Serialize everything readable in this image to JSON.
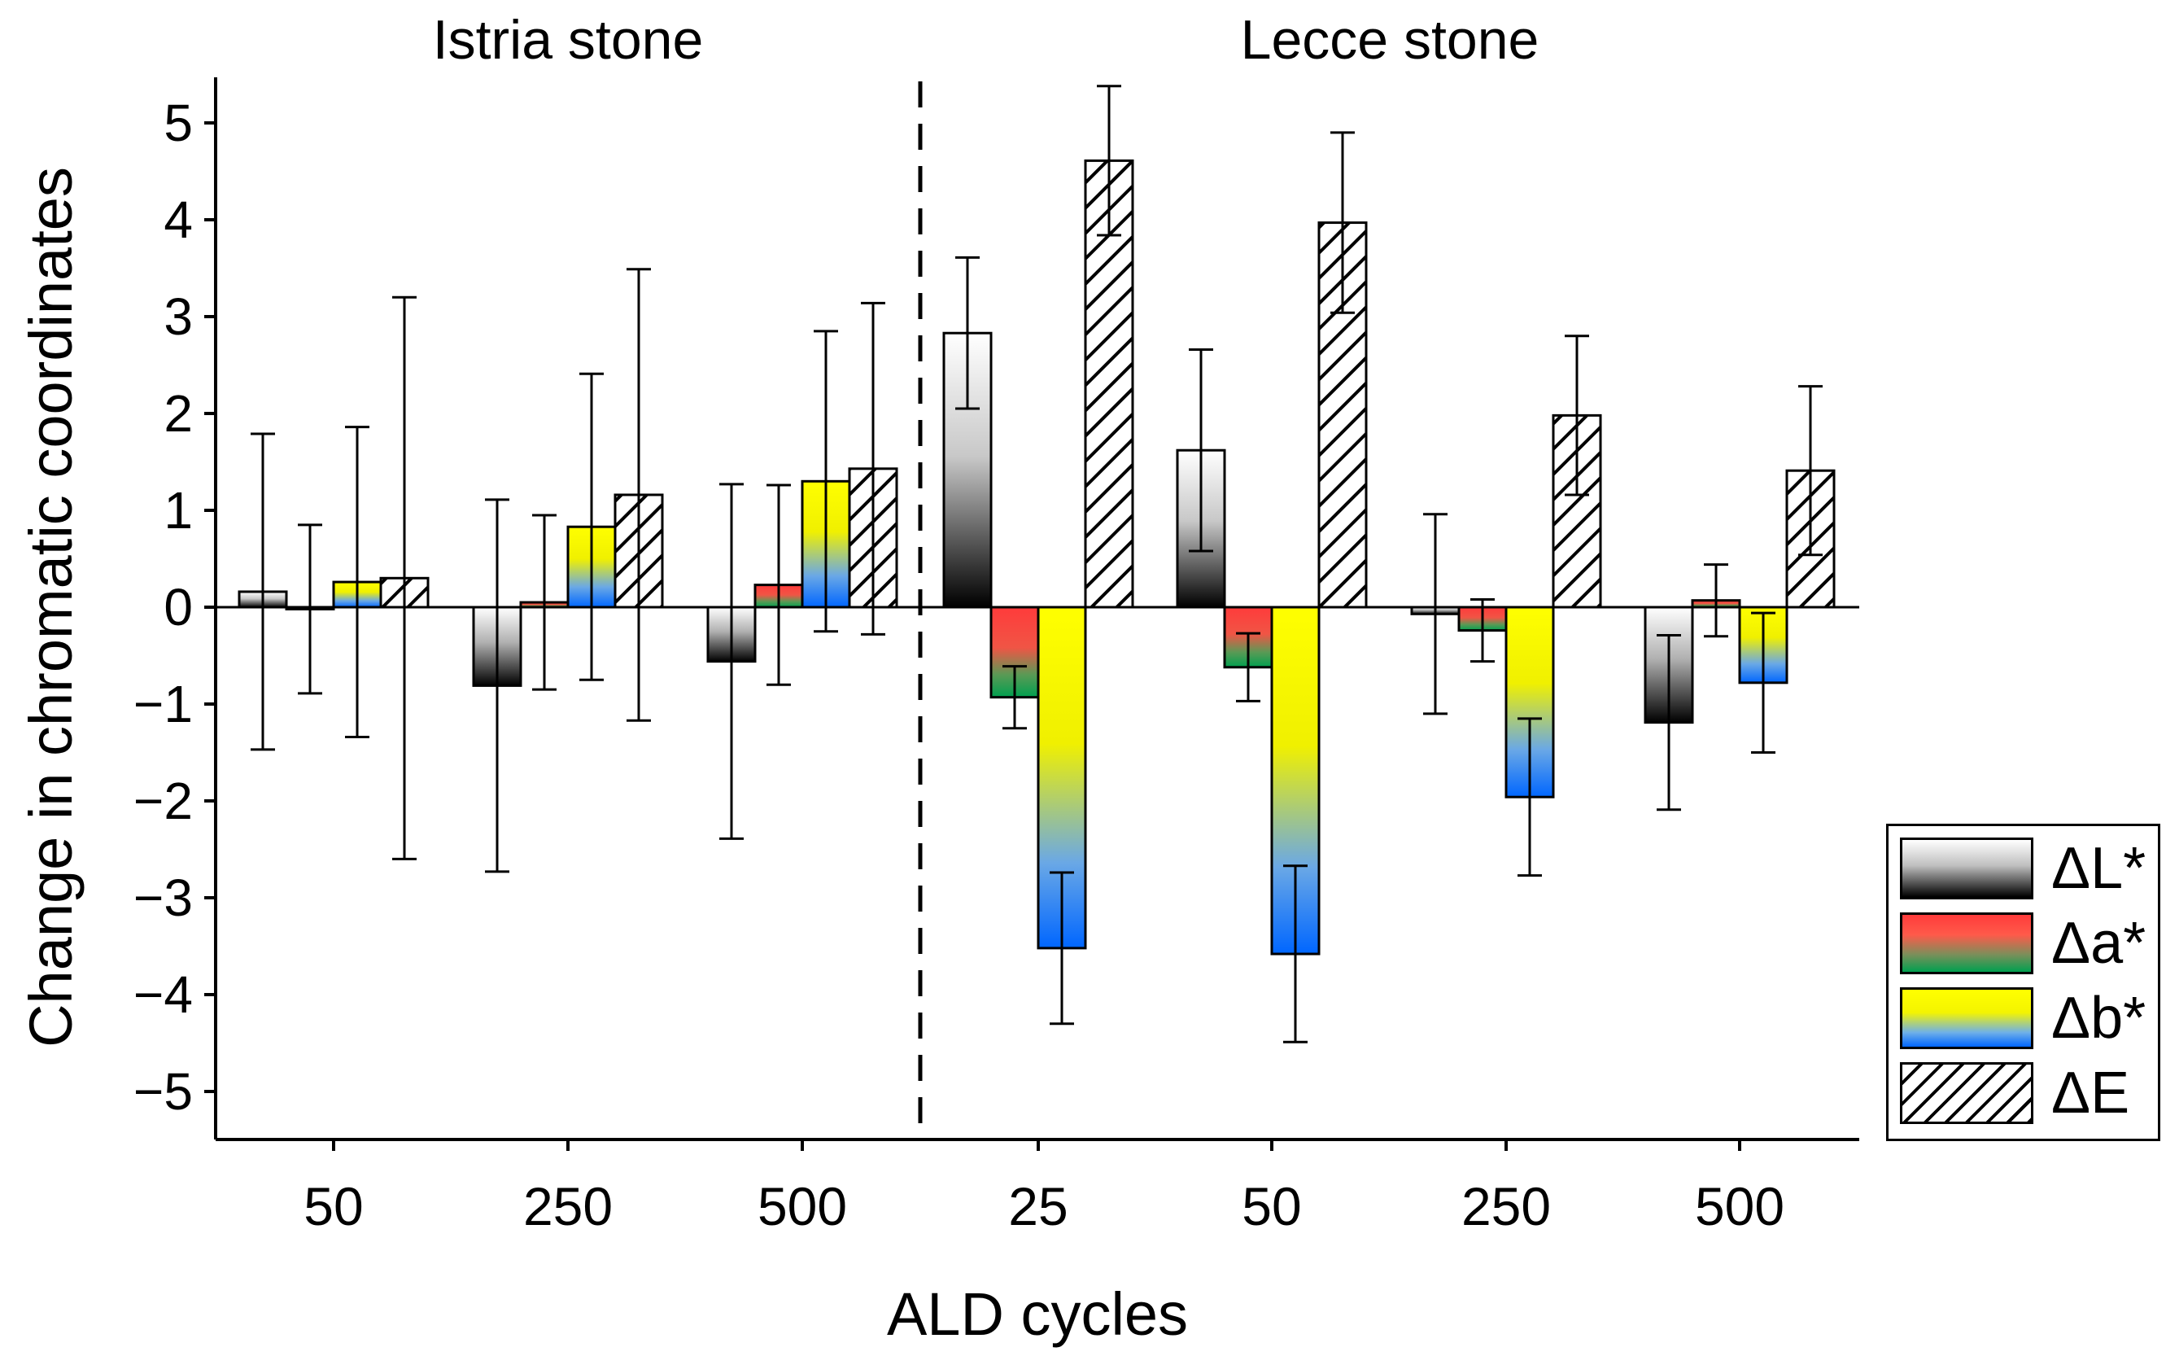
{
  "chart_data": {
    "type": "bar",
    "ylabel": "Change in chromatic coordinates",
    "xlabel": "ALD cycles",
    "ylim": [
      -5.5,
      5.5
    ],
    "yticks": [
      "5",
      "4",
      "3",
      "2",
      "1",
      "0",
      "−1",
      "−2",
      "−3",
      "−4",
      "−5"
    ],
    "ytick_values": [
      5,
      4,
      3,
      2,
      1,
      0,
      -1,
      -2,
      -3,
      -4,
      -5
    ],
    "groups": [
      {
        "title": "Istria stone",
        "categories": [
          "50",
          "250",
          "500"
        ]
      },
      {
        "title": "Lecce stone",
        "categories": [
          "25",
          "50",
          "250",
          "500"
        ]
      }
    ],
    "categories": [
      "50",
      "250",
      "500",
      "25",
      "50",
      "250",
      "500"
    ],
    "series": [
      {
        "name": "ΔL*",
        "values": [
          0.16,
          -0.81,
          -0.56,
          2.83,
          1.62,
          -0.07,
          -1.19
        ],
        "errors": [
          1.63,
          1.92,
          1.83,
          0.78,
          1.04,
          1.03,
          0.9
        ]
      },
      {
        "name": "Δa*",
        "values": [
          -0.02,
          0.05,
          0.23,
          -0.93,
          -0.62,
          -0.24,
          0.07
        ],
        "errors": [
          0.87,
          0.9,
          1.03,
          0.32,
          0.35,
          0.32,
          0.37
        ]
      },
      {
        "name": "Δb*",
        "values": [
          0.26,
          0.83,
          1.3,
          -3.52,
          -3.58,
          -1.96,
          -0.78
        ],
        "errors": [
          1.6,
          1.58,
          1.55,
          0.78,
          0.91,
          0.81,
          0.72
        ]
      },
      {
        "name": "ΔE",
        "values": [
          0.3,
          1.16,
          1.43,
          4.61,
          3.97,
          1.98,
          1.41
        ],
        "errors": [
          2.9,
          2.33,
          1.71,
          0.77,
          0.93,
          0.82,
          0.87
        ]
      }
    ],
    "legend_position": "right",
    "separator": "dashed line between Istria stone and Lecce stone"
  },
  "legend": [
    {
      "label": "ΔL*",
      "swatch": "sw-L"
    },
    {
      "label": "Δa*",
      "swatch": "sw-a"
    },
    {
      "label": "Δb*",
      "swatch": "sw-b"
    },
    {
      "label": "ΔE",
      "swatch": "sw-E"
    }
  ]
}
